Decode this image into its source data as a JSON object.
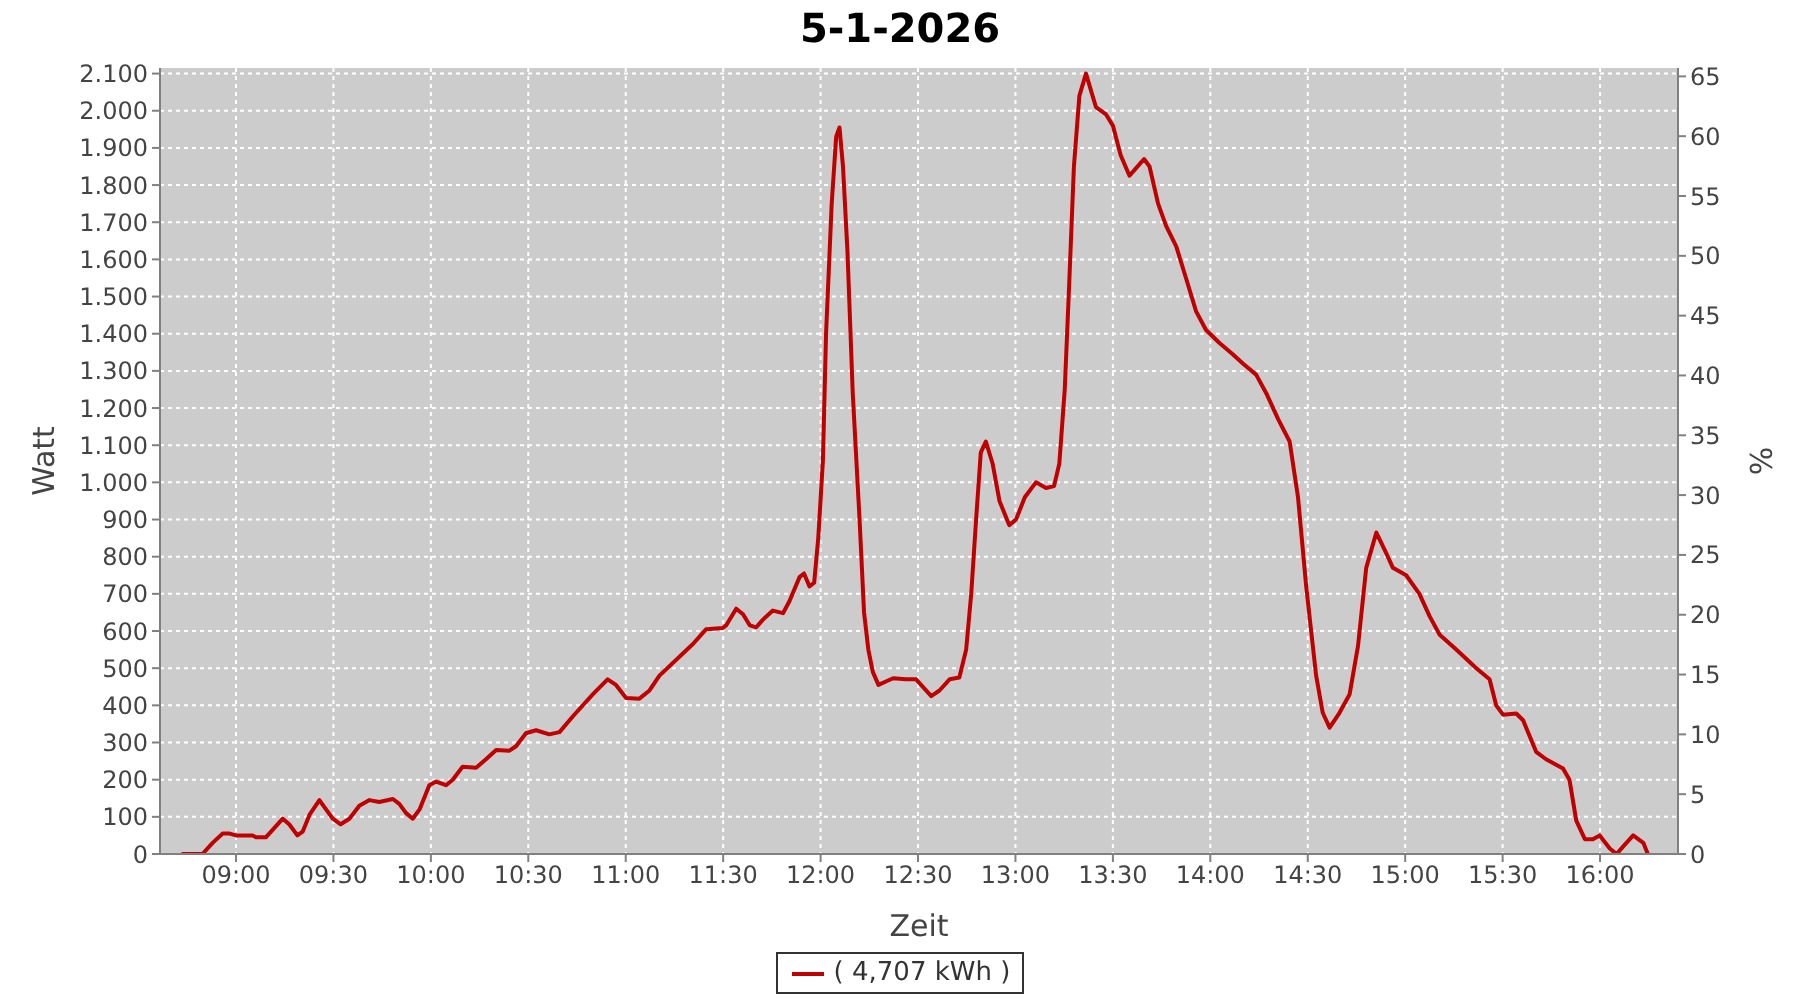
{
  "chart_data": {
    "type": "line",
    "title": "5-1-2026",
    "xlabel": "Zeit",
    "ylabel": "Watt",
    "y2label": "%",
    "xlim": [
      8.61,
      16.4
    ],
    "xticks": [
      {
        "value": 9,
        "label": "09:00"
      },
      {
        "value": 9.5,
        "label": "09:30"
      },
      {
        "value": 10,
        "label": "10:00"
      },
      {
        "value": 10.5,
        "label": "10:30"
      },
      {
        "value": 11,
        "label": "11:00"
      },
      {
        "value": 11.5,
        "label": "11:30"
      },
      {
        "value": 12,
        "label": "12:00"
      },
      {
        "value": 12.5,
        "label": "12:30"
      },
      {
        "value": 13,
        "label": "13:00"
      },
      {
        "value": 13.5,
        "label": "13:30"
      },
      {
        "value": 14,
        "label": "14:00"
      },
      {
        "value": 14.5,
        "label": "14:30"
      },
      {
        "value": 15,
        "label": "15:00"
      },
      {
        "value": 15.5,
        "label": "15:30"
      },
      {
        "value": 16,
        "label": "16:00"
      }
    ],
    "ylim": [
      0,
      2115
    ],
    "yticks": [
      0,
      100,
      200,
      300,
      400,
      500,
      600,
      700,
      800,
      900,
      {
        "value": 1000,
        "label": "1.000"
      },
      {
        "value": 1100,
        "label": "1.100"
      },
      {
        "value": 1200,
        "label": "1.200"
      },
      {
        "value": 1300,
        "label": "1.300"
      },
      {
        "value": 1400,
        "label": "1.400"
      },
      {
        "value": 1500,
        "label": "1.500"
      },
      {
        "value": 1600,
        "label": "1.600"
      },
      {
        "value": 1700,
        "label": "1.700"
      },
      {
        "value": 1800,
        "label": "1.800"
      },
      {
        "value": 1900,
        "label": "1.900"
      },
      {
        "value": 2000,
        "label": "2.000"
      },
      {
        "value": 2100,
        "label": "2.100"
      }
    ],
    "y2lim": [
      0,
      65.7
    ],
    "y2ticks": [
      0,
      5,
      10,
      15,
      20,
      25,
      30,
      35,
      40,
      45,
      50,
      55,
      60,
      65
    ],
    "grid": true,
    "legend": "bottom",
    "marker": "none",
    "line_style": "solid",
    "series": [
      {
        "name": "( 4,707 kWh )",
        "color": "#c00000",
        "x": [
          8.727,
          8.828,
          8.88,
          8.932,
          8.967,
          9.0,
          9.085,
          9.103,
          9.153,
          9.188,
          9.24,
          9.273,
          9.315,
          9.342,
          9.377,
          9.428,
          9.462,
          9.497,
          9.537,
          9.582,
          9.633,
          9.685,
          9.735,
          9.805,
          9.838,
          9.873,
          9.907,
          9.942,
          9.992,
          10.027,
          10.078,
          10.112,
          10.163,
          10.232,
          10.283,
          10.335,
          10.403,
          10.437,
          10.488,
          10.54,
          10.608,
          10.66,
          10.728,
          10.832,
          10.907,
          10.95,
          11.002,
          11.07,
          11.122,
          11.173,
          11.345,
          11.413,
          11.498,
          11.515,
          11.567,
          11.602,
          11.637,
          11.67,
          11.703,
          11.755,
          11.807,
          11.84,
          11.892,
          11.915,
          11.943,
          11.967,
          11.988,
          12.012,
          12.028,
          12.057,
          12.08,
          12.097,
          12.115,
          12.138,
          12.165,
          12.2,
          12.223,
          12.245,
          12.268,
          12.297,
          12.338,
          12.372,
          12.438,
          12.49,
          12.568,
          12.61,
          12.662,
          12.712,
          12.747,
          12.773,
          12.798,
          12.822,
          12.848,
          12.883,
          12.918,
          12.968,
          13.003,
          13.048,
          13.105,
          13.157,
          13.198,
          13.225,
          13.253,
          13.277,
          13.3,
          13.328,
          13.362,
          13.39,
          13.413,
          13.465,
          13.5,
          13.54,
          13.585,
          13.618,
          13.66,
          13.688,
          13.732,
          13.773,
          13.825,
          13.875,
          13.927,
          13.978,
          14.047,
          14.115,
          14.167,
          14.235,
          14.287,
          14.348,
          14.407,
          14.45,
          14.492,
          14.543,
          14.577,
          14.612,
          14.663,
          14.715,
          14.758,
          14.8,
          14.852,
          14.902,
          14.937,
          15.005,
          15.073,
          15.125,
          15.177,
          15.262,
          15.365,
          15.433,
          15.467,
          15.502,
          15.57,
          15.605,
          15.672,
          15.723,
          15.81,
          15.843,
          15.878,
          15.922,
          15.963,
          15.998,
          16.05,
          16.085,
          16.118,
          16.17,
          16.222,
          16.245
        ],
        "values": [
          0,
          0,
          30,
          55,
          55,
          50,
          50,
          45,
          45,
          65,
          95,
          80,
          50,
          60,
          105,
          145,
          120,
          95,
          80,
          95,
          130,
          145,
          140,
          148,
          135,
          110,
          95,
          120,
          185,
          195,
          185,
          200,
          235,
          232,
          255,
          280,
          278,
          290,
          325,
          333,
          322,
          328,
          370,
          430,
          470,
          455,
          420,
          418,
          440,
          480,
          565,
          605,
          608,
          615,
          660,
          645,
          615,
          610,
          630,
          655,
          648,
          680,
          745,
          755,
          720,
          730,
          850,
          1060,
          1400,
          1750,
          1930,
          1955,
          1850,
          1620,
          1240,
          900,
          650,
          550,
          490,
          455,
          465,
          473,
          470,
          470,
          425,
          440,
          470,
          475,
          550,
          700,
          900,
          1080,
          1110,
          1050,
          950,
          885,
          900,
          960,
          1000,
          985,
          990,
          1050,
          1250,
          1550,
          1850,
          2040,
          2100,
          2050,
          2010,
          1990,
          1960,
          1880,
          1825,
          1845,
          1870,
          1850,
          1750,
          1690,
          1635,
          1550,
          1460,
          1410,
          1375,
          1345,
          1320,
          1290,
          1240,
          1170,
          1110,
          960,
          720,
          480,
          380,
          340,
          380,
          430,
          560,
          770,
          865,
          810,
          770,
          750,
          700,
          640,
          590,
          550,
          500,
          470,
          400,
          375,
          378,
          360,
          275,
          255,
          230,
          200,
          90,
          40,
          40,
          50,
          15,
          0,
          20,
          50,
          30,
          0
        ]
      }
    ]
  }
}
